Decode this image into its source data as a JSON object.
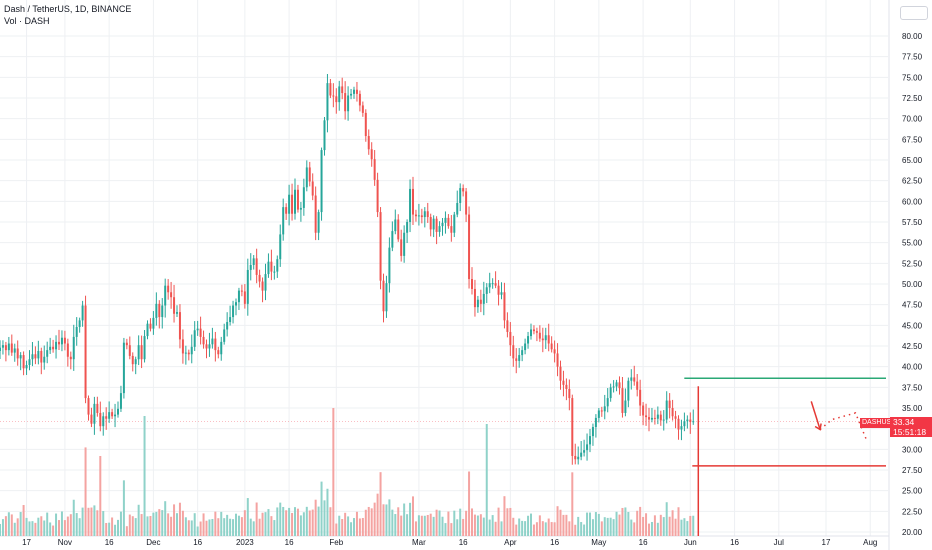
{
  "header": {
    "symbol_line": "Dash / TetherUS, 1D, BINANCE",
    "volume_line": "Vol · DASH"
  },
  "price_badge": {
    "symbol": "DASHUSDT",
    "price": "33.34",
    "countdown": "15:51:18"
  },
  "colors": {
    "up": "#26a69a",
    "down": "#ef5350",
    "vol_up": "#8fd2c9",
    "vol_down": "#f4a3a1",
    "resistance_line": "#2aa876",
    "support_line": "#e53935",
    "badge": "#f23645",
    "grid": "#eef0f3"
  },
  "chart_data": {
    "type": "candlestick",
    "title": "Dash / TetherUS, 1D, BINANCE",
    "ylim": [
      20.0,
      82.5
    ],
    "y_ticks": [
      "80.00",
      "77.50",
      "75.00",
      "72.50",
      "70.00",
      "67.50",
      "65.00",
      "62.50",
      "60.00",
      "57.50",
      "55.00",
      "52.50",
      "50.00",
      "47.50",
      "45.00",
      "42.50",
      "40.00",
      "37.50",
      "35.00",
      "32.50",
      "30.00",
      "27.50",
      "25.00",
      "22.50",
      "20.00"
    ],
    "x_tick_labels": [
      {
        "label": "17",
        "idx": 9
      },
      {
        "label": "Nov",
        "idx": 22
      },
      {
        "label": "16",
        "idx": 37
      },
      {
        "label": "Dec",
        "idx": 52
      },
      {
        "label": "16",
        "idx": 67
      },
      {
        "label": "2023",
        "idx": 83
      },
      {
        "label": "16",
        "idx": 98
      },
      {
        "label": "Feb",
        "idx": 114
      },
      {
        "label": "Mar",
        "idx": 142
      },
      {
        "label": "16",
        "idx": 157
      },
      {
        "label": "Apr",
        "idx": 173
      },
      {
        "label": "16",
        "idx": 188
      },
      {
        "label": "May",
        "idx": 203
      },
      {
        "label": "16",
        "idx": 218
      },
      {
        "label": "Jun",
        "idx": 234
      },
      {
        "label": "16",
        "idx": 249
      },
      {
        "label": "Jul",
        "idx": 264
      },
      {
        "label": "17",
        "idx": 280
      },
      {
        "label": "Aug",
        "idx": 295
      }
    ],
    "close_series": [
      42.3,
      42.6,
      42.0,
      42.8,
      41.7,
      42.2,
      41.0,
      41.4,
      39.8,
      40.2,
      40.9,
      41.5,
      41.0,
      41.9,
      40.5,
      41.2,
      42.0,
      42.4,
      42.1,
      43.0,
      42.7,
      43.5,
      42.8,
      41.2,
      40.9,
      43.6,
      44.8,
      45.6,
      47.4,
      36.2,
      34.2,
      33.1,
      35.5,
      34.4,
      32.8,
      34.0,
      33.7,
      34.5,
      34.0,
      34.2,
      34.9,
      36.8,
      42.9,
      42.6,
      41.3,
      40.3,
      40.9,
      42.6,
      40.9,
      43.7,
      45.2,
      44.6,
      45.9,
      47.6,
      46.0,
      47.4,
      49.8,
      49.0,
      48.4,
      46.4,
      46.6,
      43.3,
      41.6,
      41.7,
      41.5,
      42.4,
      44.4,
      44.6,
      43.6,
      42.7,
      42.2,
      42.7,
      43.4,
      42.0,
      41.5,
      43.0,
      44.5,
      45.4,
      46.0,
      47.4,
      47.8,
      49.2,
      49.1,
      47.6,
      51.7,
      52.3,
      53.1,
      51.1,
      50.3,
      49.2,
      51.2,
      52.7,
      51.5,
      51.5,
      53.0,
      56.0,
      59.3,
      58.5,
      60.8,
      58.5,
      61.4,
      59.0,
      59.2,
      61.7,
      64.1,
      62.4,
      60.7,
      56.2,
      58.7,
      66.2,
      69.8,
      74.3,
      72.8,
      72.7,
      72.0,
      73.9,
      73.1,
      70.9,
      72.8,
      73.0,
      73.5,
      73.0,
      71.6,
      70.7,
      67.9,
      66.3,
      65.1,
      62.6,
      58.7,
      50.4,
      46.7,
      50.1,
      54.4,
      56.4,
      57.8,
      55.4,
      53.4,
      56.2,
      57.5,
      61.5,
      58.4,
      58.2,
      58.3,
      58.1,
      58.8,
      58.1,
      56.6,
      57.9,
      56.3,
      57.0,
      57.4,
      58.0,
      57.0,
      56.2,
      58.4,
      59.8,
      61.6,
      61.2,
      58.4,
      50.6,
      49.4,
      47.2,
      48.1,
      47.6,
      48.8,
      49.6,
      50.1,
      50.1,
      49.8,
      48.7,
      49.0,
      45.6,
      44.2,
      42.6,
      41.0,
      40.7,
      41.4,
      42.0,
      42.8,
      43.7,
      44.5,
      44.3,
      44.1,
      43.4,
      43.2,
      43.8,
      42.8,
      42.1,
      41.6,
      40.0,
      38.3,
      37.8,
      37.3,
      36.2,
      29.2,
      28.8,
      29.1,
      29.6,
      29.9,
      30.6,
      31.6,
      32.7,
      33.8,
      34.7,
      34.6,
      35.2,
      36.2,
      37.5,
      37.6,
      38.1,
      37.4,
      34.4,
      35.9,
      38.3,
      38.7,
      38.2,
      37.2,
      35.3,
      34.1,
      33.9,
      33.6,
      33.8,
      33.7,
      34.2,
      33.5,
      33.6,
      35.9,
      35.0,
      34.0,
      33.7,
      32.4,
      32.8,
      33.4,
      33.6,
      33.3,
      33.4
    ],
    "projection_path": [
      {
        "idx": 275,
        "price": 35.8
      },
      {
        "idx": 278,
        "price": 32.4
      },
      {
        "idx": 282,
        "price": 33.6
      },
      {
        "idx": 290,
        "price": 34.4
      },
      {
        "idx": 294,
        "price": 30.9
      }
    ],
    "resistance_level": 38.6,
    "support_level": 28.0,
    "drop_marker_idx": 234,
    "current_price": 33.34
  }
}
